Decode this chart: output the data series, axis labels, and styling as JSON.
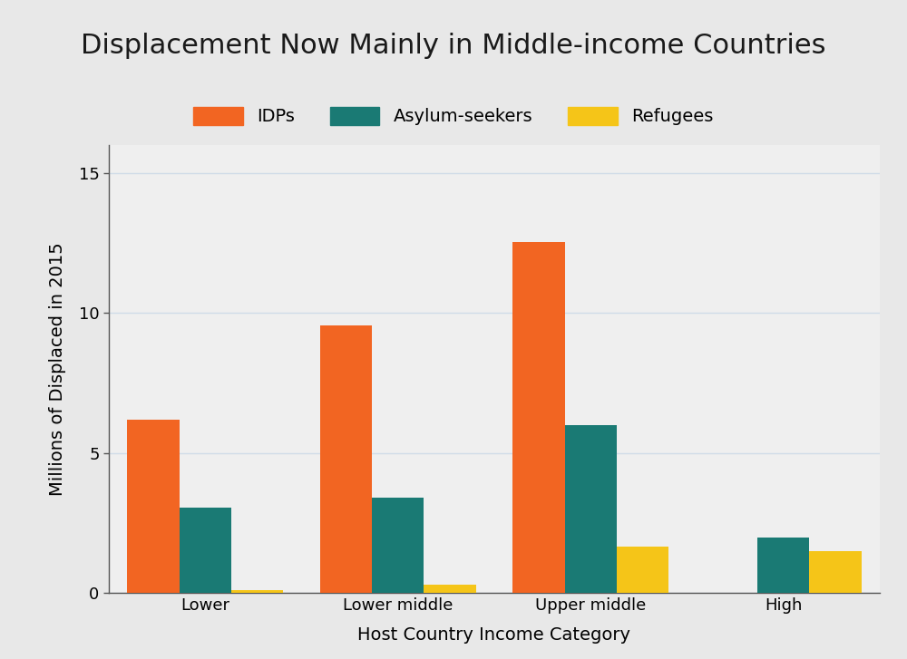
{
  "title": "Displacement Now Mainly in Middle-income Countries",
  "xlabel": "Host Country Income Category",
  "ylabel": "Millions of Displaced in 2015",
  "categories": [
    "Lower",
    "Lower middle",
    "Upper middle",
    "High"
  ],
  "series": {
    "IDPs": [
      6.2,
      9.55,
      12.55,
      0.0
    ],
    "Asylum-seekers": [
      3.05,
      3.4,
      6.0,
      2.0
    ],
    "Refugees": [
      0.1,
      0.3,
      1.65,
      1.5
    ]
  },
  "colors": {
    "IDPs": "#F26522",
    "Asylum-seekers": "#1A7A74",
    "Refugees": "#F5C518"
  },
  "ylim": [
    0,
    16
  ],
  "yticks": [
    0,
    5,
    10,
    15
  ],
  "background_color": "#E8E8E8",
  "plot_bg_color": "#EFEFEF",
  "bar_width": 0.27,
  "title_fontsize": 22,
  "axis_label_fontsize": 14,
  "tick_fontsize": 13,
  "legend_fontsize": 14
}
